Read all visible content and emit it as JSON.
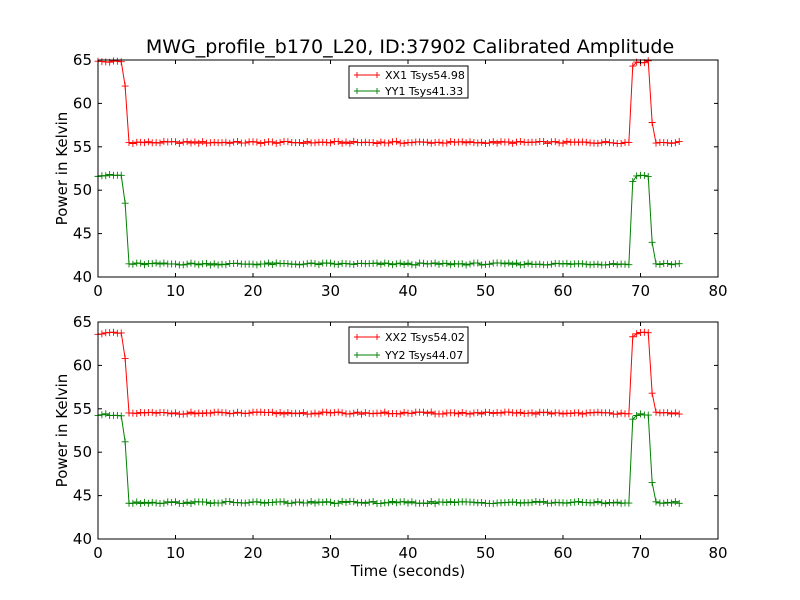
{
  "chart_data": [
    {
      "type": "line",
      "title": "MWG_profile_b170_L20, ID:37902 Calibrated Amplitude",
      "xlabel": "",
      "ylabel": "Power in Kelvin",
      "xlim": [
        0,
        80
      ],
      "ylim": [
        40,
        65
      ],
      "xticks": [
        0,
        10,
        20,
        30,
        40,
        50,
        60,
        70,
        80
      ],
      "yticks": [
        40,
        45,
        50,
        55,
        60,
        65
      ],
      "grid": false,
      "legend_position": "top-center",
      "series": [
        {
          "name": "XX1 Tsys54.98",
          "color": "#ff0000",
          "marker": "plus",
          "profile": {
            "t_end": 75,
            "dt": 0.5,
            "high": 64.8,
            "low": 55.5,
            "t_drop_start": 3.0,
            "t_drop_mid": 3.5,
            "drop_mid_value": 62.0,
            "t_low_start": 4.0,
            "t_rise_start": 69.0,
            "rise_value": 64.3,
            "t_high_end": 71.0,
            "t_fall_mid": 71.5,
            "fall_mid_value": 57.8,
            "t_low_end": 72.0
          }
        },
        {
          "name": "YY1 Tsys41.33",
          "color": "#008000",
          "marker": "plus",
          "profile": {
            "t_end": 75,
            "dt": 0.5,
            "high": 51.7,
            "low": 41.5,
            "t_drop_start": 3.0,
            "t_drop_mid": 3.5,
            "drop_mid_value": 48.5,
            "t_low_start": 4.0,
            "t_rise_start": 69.0,
            "rise_value": 51.0,
            "t_high_end": 71.0,
            "t_fall_mid": 71.5,
            "fall_mid_value": 44.0,
            "t_low_end": 72.0
          }
        }
      ]
    },
    {
      "type": "line",
      "title": "",
      "xlabel": "Time (seconds)",
      "ylabel": "Power in Kelvin",
      "xlim": [
        0,
        80
      ],
      "ylim": [
        40,
        65
      ],
      "xticks": [
        0,
        10,
        20,
        30,
        40,
        50,
        60,
        70,
        80
      ],
      "yticks": [
        40,
        45,
        50,
        55,
        60,
        65
      ],
      "grid": false,
      "legend_position": "top-center",
      "series": [
        {
          "name": "XX2 Tsys54.02",
          "color": "#ff0000",
          "marker": "plus",
          "profile": {
            "t_end": 75,
            "dt": 0.5,
            "high": 63.7,
            "low": 54.5,
            "t_drop_start": 3.0,
            "t_drop_mid": 3.5,
            "drop_mid_value": 60.8,
            "t_low_start": 4.0,
            "t_rise_start": 69.0,
            "rise_value": 63.3,
            "t_high_end": 71.0,
            "t_fall_mid": 71.5,
            "fall_mid_value": 56.8,
            "t_low_end": 72.0
          }
        },
        {
          "name": "YY2 Tsys44.07",
          "color": "#008000",
          "marker": "plus",
          "profile": {
            "t_end": 75,
            "dt": 0.5,
            "high": 54.3,
            "low": 44.2,
            "t_drop_start": 3.0,
            "t_drop_mid": 3.5,
            "drop_mid_value": 51.2,
            "t_low_start": 4.0,
            "t_rise_start": 69.0,
            "rise_value": 53.8,
            "t_high_end": 71.0,
            "t_fall_mid": 71.5,
            "fall_mid_value": 46.5,
            "t_low_end": 72.0
          }
        }
      ]
    }
  ]
}
